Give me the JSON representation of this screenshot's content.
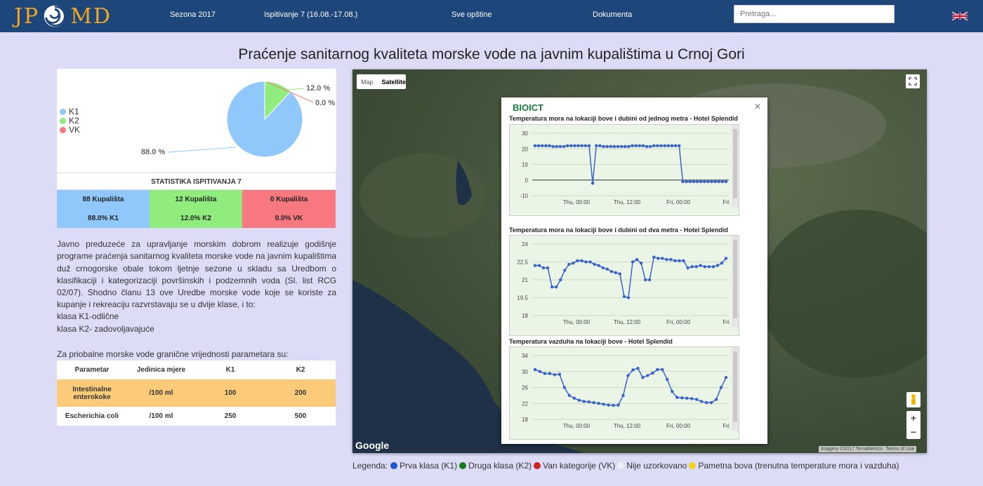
{
  "nav": {
    "logo_left": "JP",
    "logo_right": "MD",
    "season": "Sezona 2017",
    "test": "Ispitivanje 7 (16.08.-17.08.)",
    "municipalities": "Sve opštine",
    "documents": "Dokumenta",
    "search_placeholder": "Pretraga..."
  },
  "page_title": "Praćenje sanitarnog kvaliteta morske vode na javnim kupalištima u Crnoj Gori",
  "pie": {
    "legend": [
      {
        "label": "K1",
        "color": "#90c8fb"
      },
      {
        "label": "K2",
        "color": "#90ed7d"
      },
      {
        "label": "VK",
        "color": "#f7787f"
      }
    ],
    "labels": {
      "k1": "88.0 %",
      "k2": "12.0 %",
      "vk": "0.0 %"
    }
  },
  "chart_data": [
    {
      "type": "pie",
      "categories": [
        "K1",
        "K2",
        "VK"
      ],
      "values": [
        88.0,
        12.0,
        0.0
      ],
      "colors": [
        "#90c8fb",
        "#90ed7d",
        "#f7787f"
      ],
      "legend": "left"
    },
    {
      "type": "line",
      "title": "Temperatura mora na lokaciji bove i dubini od jednog metra - Hotel Splendid",
      "yticks": [
        30,
        20,
        10,
        0,
        -10
      ],
      "xticks": [
        "Thu, 00:00",
        "Thu, 12:00",
        "Fri, 00:00",
        "Fri"
      ],
      "ylim": [
        -10,
        30
      ],
      "values": [
        22,
        22,
        22,
        22,
        22,
        21.5,
        21.5,
        21.5,
        21.5,
        22,
        22,
        22,
        22,
        22,
        22,
        22,
        -2,
        22,
        22,
        21.5,
        21.5,
        21.5,
        21.5,
        21.5,
        21.5,
        21.5,
        21.5,
        22,
        22,
        22,
        22,
        21.5,
        21.5,
        22,
        22,
        22,
        22,
        22,
        22,
        22,
        22,
        -1,
        -1,
        -1,
        -1,
        -1,
        -1,
        -1,
        -1,
        -1,
        -1,
        -1,
        -1,
        -1
      ]
    },
    {
      "type": "line",
      "title": "Temperatura mora na lokaciji bove i dubini od dva metra - Hotel Splendid",
      "yticks": [
        24.0,
        22.5,
        21.0,
        19.5,
        18.0
      ],
      "xticks": [
        "Thu, 00:00",
        "Thu, 12:00",
        "Fri, 00:00",
        "Fri"
      ],
      "ylim": [
        18,
        24
      ],
      "values": [
        22.2,
        22.2,
        22.0,
        22.0,
        20.4,
        20.4,
        21.0,
        21.8,
        22.3,
        22.4,
        22.6,
        22.6,
        22.5,
        22.5,
        22.3,
        22.2,
        22.0,
        21.9,
        21.7,
        21.6,
        21.5,
        19.6,
        19.5,
        22.5,
        22.7,
        22.4,
        21.0,
        21.0,
        22.9,
        22.8,
        22.8,
        22.7,
        22.7,
        22.6,
        22.6,
        22.6,
        22.0,
        22.1,
        22.1,
        22.2,
        22.1,
        22.1,
        22.1,
        22.2,
        22.4,
        22.8
      ]
    },
    {
      "type": "line",
      "title": "Temperatura vazduha na lokaciji bove - Hotel Splendid",
      "yticks": [
        34,
        30,
        26,
        22,
        18
      ],
      "xticks": [
        "Thu, 00:00",
        "Thu, 12:00",
        "Fri, 00:00",
        "Fri"
      ],
      "ylim": [
        18,
        34
      ],
      "values": [
        30.5,
        30,
        29.5,
        29.5,
        29.2,
        29.3,
        26,
        24,
        23.3,
        22.8,
        22.5,
        22.4,
        22.2,
        22,
        21.8,
        21.6,
        21.5,
        21.6,
        24,
        29,
        30.4,
        30.8,
        28.5,
        29,
        29.6,
        30.5,
        30.5,
        28,
        25,
        23.5,
        23.4,
        23.3,
        23.2,
        23,
        22.5,
        22.2,
        22.2,
        23,
        26,
        28.5
      ]
    }
  ],
  "stats": {
    "title": "STATISTIKA ISPITIVANJA 7",
    "cells": [
      {
        "count": "88 Kupališta",
        "pct": "88.0% K1",
        "color": "#90c8fb"
      },
      {
        "count": "12 Kupališta",
        "pct": "12.0% K2",
        "color": "#90ed7d"
      },
      {
        "count": "0 Kupališta",
        "pct": "0.0% VK",
        "color": "#f7787f"
      }
    ]
  },
  "description": "Javno preduzeće za upravljanje morskim dobrom realizuje godišnje programe praćenja sanitarnog kvaliteta morske vode na javnim kupalištima duž crnogorske obale tokom ljetnje sezone u skladu sa Uredbom o klasifikaciji i kategorizaciji površinskih i podzemnih voda (Sl. list RCG 02/07). Shodno članu 13 ove Uredbe morske vode koje se koriste za kupanje i rekreaciju razvrstavaju se u dvije klase, i to:",
  "class_k1": "klasa K1-odlične",
  "class_k2": "klasa K2- zadovoljavajuće",
  "limits_intro": "Za priobalne morske vode granične vrijednosti parametara su:",
  "params": {
    "headers": [
      "Parametar",
      "Jedinica mjere",
      "K1",
      "K2"
    ],
    "rows": [
      {
        "name": "Intestinalne enterokoke",
        "unit": "/100 ml",
        "k1": "100",
        "k2": "200",
        "bg": "#fbcb7a"
      },
      {
        "name": "Escherichia coli",
        "unit": "/100 ml",
        "k1": "250",
        "k2": "500",
        "bg": "#ffffff"
      }
    ]
  },
  "map": {
    "toggle_map": "Map",
    "toggle_satellite": "Satellite",
    "google": "Google",
    "imagery": "Imagery ©2017 TerraMetrics",
    "terms": "Terms of Use",
    "popup_logo": "BIOICT"
  },
  "legend": {
    "title": "Legenda:",
    "items": [
      {
        "label": "Prva klasa (K1)",
        "color": "#2255cc"
      },
      {
        "label": "Druga klasa (K2)",
        "color": "#1a7a1a"
      },
      {
        "label": "Van kategorije (VK)",
        "color": "#cc2222"
      },
      {
        "label": "Nije uzorkovano",
        "color": "#eeeeee"
      },
      {
        "label": "Pametna bova (trenutna temperature mora i vazduha)",
        "color": "#f3d21a"
      }
    ]
  }
}
